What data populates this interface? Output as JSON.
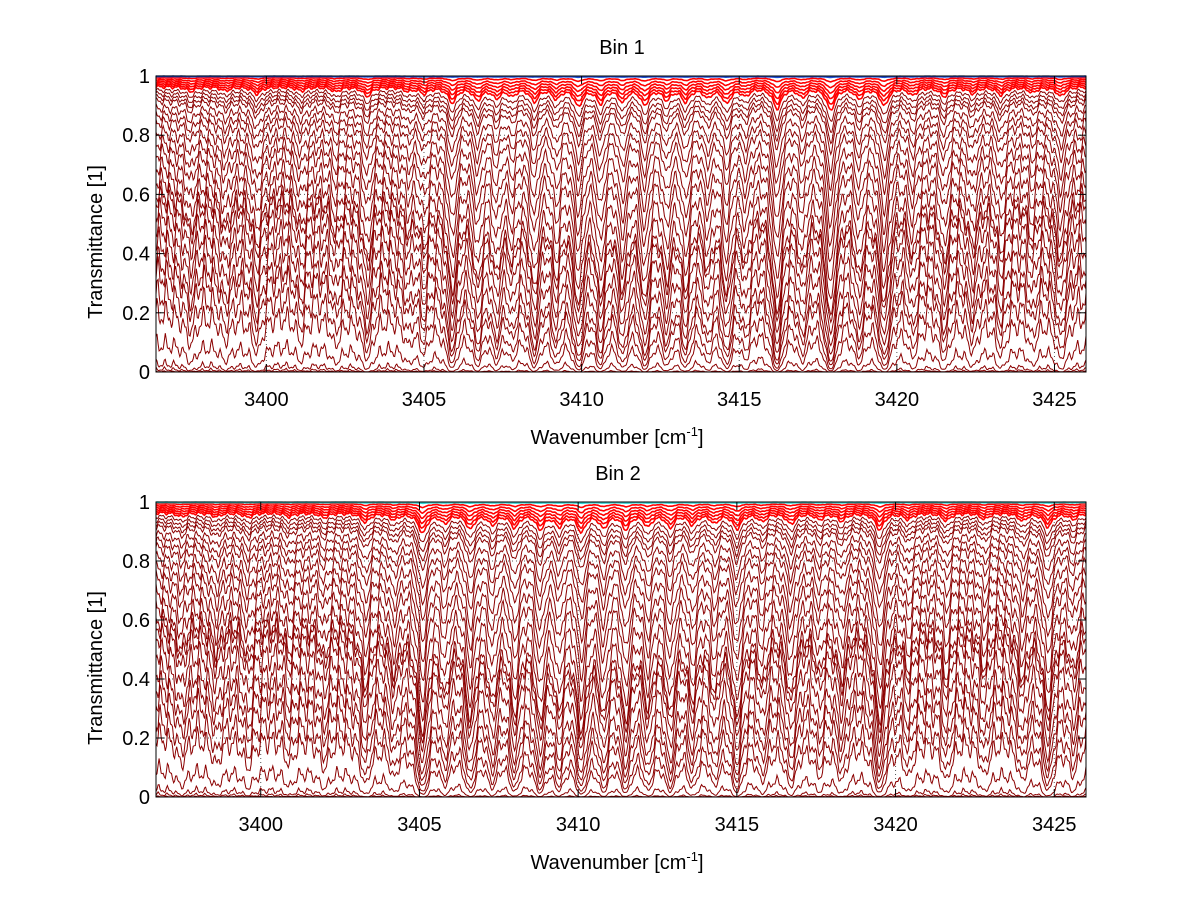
{
  "colors": {
    "main_line": "#8b0000",
    "top_band": "#ff0000",
    "bin1_top": "#1f4fd6",
    "bin2_top": "#34d4d4",
    "axes": "#000000",
    "grid": "#555555"
  },
  "chart_data": [
    {
      "type": "line",
      "title": "Bin 1",
      "xlabel": "Wavenumber [cm",
      "xlabel_sup": "-1",
      "xlabel_end": "]",
      "ylabel": "Transmittance [1]",
      "xlim": [
        3396.5,
        3426
      ],
      "ylim": [
        0,
        1
      ],
      "grid": true,
      "xticks": [
        3400,
        3405,
        3410,
        3415,
        3420,
        3425
      ],
      "xtick_labels": [
        "3400",
        "3405",
        "3410",
        "3415",
        "3420",
        "3425"
      ],
      "yticks": [
        0,
        0.2,
        0.4,
        0.6,
        0.8,
        1
      ],
      "ytick_labels": [
        "0",
        "0.2",
        "0.4",
        "0.6",
        "0.8",
        "1"
      ],
      "series_baselines": [
        0.995,
        0.99,
        0.985,
        0.98,
        0.975,
        0.97,
        0.96,
        0.95,
        0.94,
        0.93,
        0.91,
        0.89,
        0.87,
        0.84,
        0.81,
        0.78,
        0.74,
        0.7,
        0.66,
        0.64,
        0.6,
        0.55,
        0.5,
        0.44,
        0.4,
        0.33,
        0.26,
        0.14,
        0.05,
        0.02,
        0.005
      ],
      "absorption_lines": [
        {
          "x": 3397.6,
          "depth": 0.06
        },
        {
          "x": 3398.7,
          "depth": 0.05
        },
        {
          "x": 3399.7,
          "depth": 0.09
        },
        {
          "x": 3401.1,
          "depth": 0.05
        },
        {
          "x": 3402.2,
          "depth": 0.06
        },
        {
          "x": 3403.2,
          "depth": 0.12
        },
        {
          "x": 3404.5,
          "depth": 0.05
        },
        {
          "x": 3405.0,
          "depth": 0.08
        },
        {
          "x": 3405.9,
          "depth": 0.2
        },
        {
          "x": 3406.7,
          "depth": 0.16
        },
        {
          "x": 3407.3,
          "depth": 0.13
        },
        {
          "x": 3407.8,
          "depth": 0.1
        },
        {
          "x": 3408.5,
          "depth": 0.18
        },
        {
          "x": 3409.2,
          "depth": 0.14
        },
        {
          "x": 3409.9,
          "depth": 0.24
        },
        {
          "x": 3410.6,
          "depth": 0.2
        },
        {
          "x": 3411.3,
          "depth": 0.18
        },
        {
          "x": 3412.0,
          "depth": 0.22
        },
        {
          "x": 3412.7,
          "depth": 0.15
        },
        {
          "x": 3413.3,
          "depth": 0.18
        },
        {
          "x": 3414.0,
          "depth": 0.12
        },
        {
          "x": 3414.6,
          "depth": 0.2
        },
        {
          "x": 3415.2,
          "depth": 0.1
        },
        {
          "x": 3416.2,
          "depth": 0.28
        },
        {
          "x": 3417.0,
          "depth": 0.12
        },
        {
          "x": 3417.9,
          "depth": 0.3
        },
        {
          "x": 3418.8,
          "depth": 0.14
        },
        {
          "x": 3419.6,
          "depth": 0.24
        },
        {
          "x": 3420.5,
          "depth": 0.1
        },
        {
          "x": 3421.5,
          "depth": 0.12
        },
        {
          "x": 3422.4,
          "depth": 0.08
        },
        {
          "x": 3423.3,
          "depth": 0.1
        },
        {
          "x": 3424.3,
          "depth": 0.07
        },
        {
          "x": 3425.2,
          "depth": 0.12
        }
      ]
    },
    {
      "type": "line",
      "title": "Bin 2",
      "xlabel": "Wavenumber [cm",
      "xlabel_sup": "-1",
      "xlabel_end": "]",
      "ylabel": "Transmittance [1]",
      "xlim": [
        3396.7,
        3426
      ],
      "ylim": [
        0,
        1
      ],
      "grid": true,
      "xticks": [
        3400,
        3405,
        3410,
        3415,
        3420,
        3425
      ],
      "xtick_labels": [
        "3400",
        "3405",
        "3410",
        "3415",
        "3420",
        "3425"
      ],
      "yticks": [
        0,
        0.2,
        0.4,
        0.6,
        0.8,
        1
      ],
      "ytick_labels": [
        "0",
        "0.2",
        "0.4",
        "0.6",
        "0.8",
        "1"
      ],
      "series_baselines": [
        0.995,
        0.99,
        0.985,
        0.98,
        0.975,
        0.97,
        0.96,
        0.95,
        0.94,
        0.93,
        0.91,
        0.89,
        0.87,
        0.84,
        0.81,
        0.78,
        0.74,
        0.7,
        0.66,
        0.64,
        0.61,
        0.56,
        0.5,
        0.45,
        0.4,
        0.33,
        0.27,
        0.14,
        0.05,
        0.02,
        0.005
      ],
      "absorption_lines": [
        {
          "x": 3397.5,
          "depth": 0.05
        },
        {
          "x": 3398.6,
          "depth": 0.05
        },
        {
          "x": 3399.6,
          "depth": 0.06
        },
        {
          "x": 3400.9,
          "depth": 0.05
        },
        {
          "x": 3402.0,
          "depth": 0.06
        },
        {
          "x": 3403.3,
          "depth": 0.12
        },
        {
          "x": 3404.2,
          "depth": 0.08
        },
        {
          "x": 3405.1,
          "depth": 0.26
        },
        {
          "x": 3405.8,
          "depth": 0.12
        },
        {
          "x": 3406.6,
          "depth": 0.2
        },
        {
          "x": 3407.3,
          "depth": 0.14
        },
        {
          "x": 3408.0,
          "depth": 0.18
        },
        {
          "x": 3408.8,
          "depth": 0.2
        },
        {
          "x": 3409.4,
          "depth": 0.16
        },
        {
          "x": 3410.1,
          "depth": 0.24
        },
        {
          "x": 3410.8,
          "depth": 0.18
        },
        {
          "x": 3411.5,
          "depth": 0.2
        },
        {
          "x": 3412.2,
          "depth": 0.16
        },
        {
          "x": 3412.9,
          "depth": 0.18
        },
        {
          "x": 3413.6,
          "depth": 0.14
        },
        {
          "x": 3414.3,
          "depth": 0.12
        },
        {
          "x": 3415.0,
          "depth": 0.2
        },
        {
          "x": 3415.8,
          "depth": 0.1
        },
        {
          "x": 3416.7,
          "depth": 0.14
        },
        {
          "x": 3417.6,
          "depth": 0.08
        },
        {
          "x": 3418.3,
          "depth": 0.1
        },
        {
          "x": 3419.5,
          "depth": 0.22
        },
        {
          "x": 3420.4,
          "depth": 0.08
        },
        {
          "x": 3421.6,
          "depth": 0.1
        },
        {
          "x": 3422.8,
          "depth": 0.08
        },
        {
          "x": 3424.0,
          "depth": 0.1
        },
        {
          "x": 3424.8,
          "depth": 0.18
        },
        {
          "x": 3425.6,
          "depth": 0.08
        }
      ]
    }
  ]
}
